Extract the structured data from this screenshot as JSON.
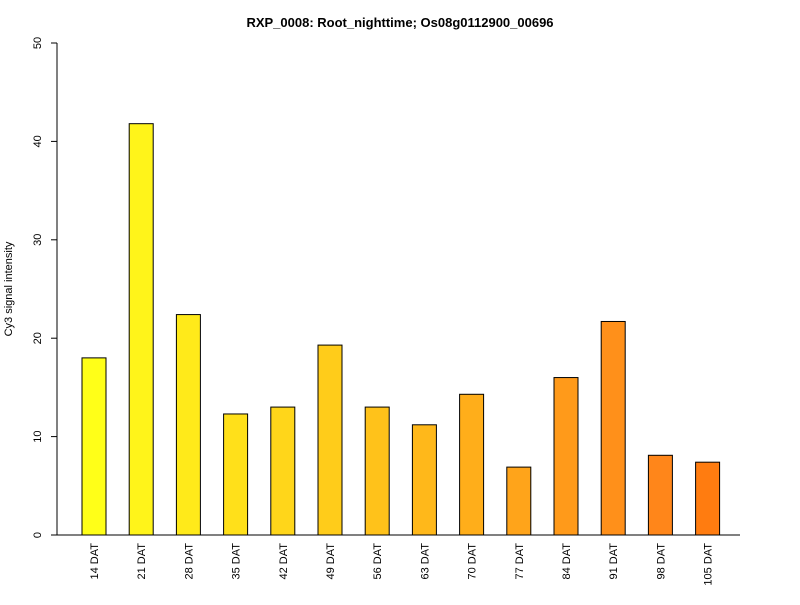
{
  "chart_data": {
    "type": "bar",
    "title": "RXP_0008: Root_nighttime; Os08g0112900_00696",
    "xlabel": "",
    "ylabel": "Cy3 signal intensity",
    "ylim": [
      0,
      50
    ],
    "yticks": [
      0,
      10,
      20,
      30,
      40,
      50
    ],
    "grid": false,
    "categories": [
      "14 DAT",
      "21 DAT",
      "28 DAT",
      "35 DAT",
      "42 DAT",
      "49 DAT",
      "56 DAT",
      "63 DAT",
      "70 DAT",
      "77 DAT",
      "84 DAT",
      "91 DAT",
      "98 DAT",
      "105 DAT"
    ],
    "values": [
      18.0,
      41.8,
      22.4,
      12.3,
      13.0,
      19.3,
      13.0,
      11.2,
      14.3,
      6.9,
      16.0,
      21.7,
      8.1,
      7.4
    ],
    "colors": [
      "#FFFF18",
      "#FFF41A",
      "#FFEA1A",
      "#FFE01A",
      "#FFD61A",
      "#FFCC1A",
      "#FFC21A",
      "#FFB81A",
      "#FFAE1A",
      "#FFA41A",
      "#FF9A1A",
      "#FF901A",
      "#FF861A",
      "#FF7C10"
    ]
  }
}
